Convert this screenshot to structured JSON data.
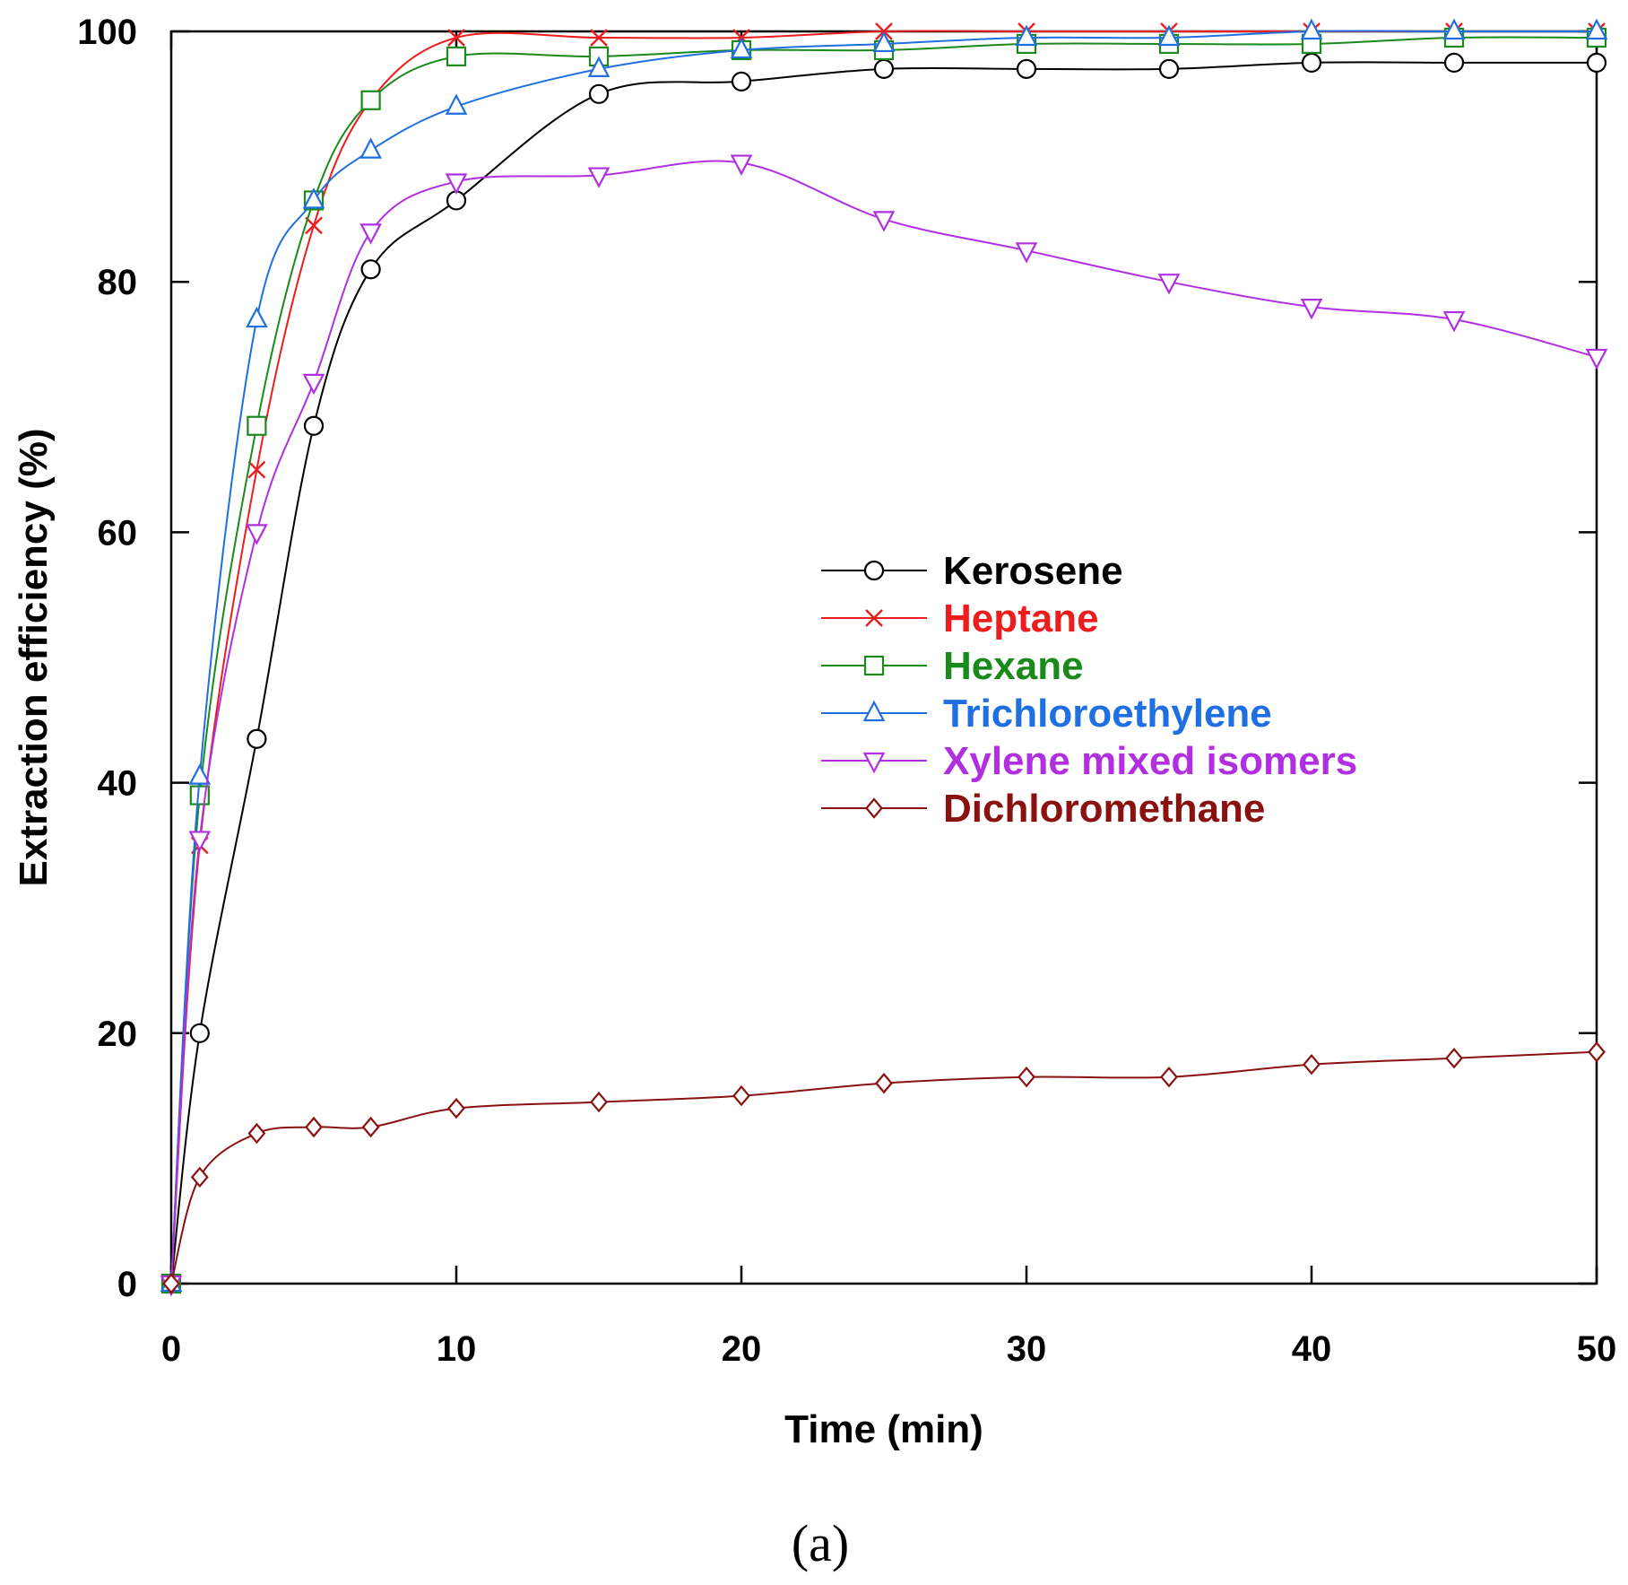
{
  "chart_data": {
    "type": "line",
    "title": "",
    "xlabel": "Time (min)",
    "ylabel": "Extraction efficiency (%)",
    "xlim": [
      0,
      50
    ],
    "ylim": [
      0,
      100
    ],
    "xticks": [
      0,
      10,
      20,
      30,
      40,
      50
    ],
    "yticks": [
      0,
      20,
      40,
      60,
      80,
      100
    ],
    "grid": false,
    "legend_position": "center-right",
    "caption": "(a)",
    "x": [
      0,
      1,
      3,
      5,
      7,
      10,
      15,
      20,
      25,
      30,
      35,
      40,
      45,
      50
    ],
    "series": [
      {
        "name": "Kerosene",
        "color": "#000000",
        "marker": "circle",
        "values": [
          0,
          20,
          43.5,
          68.5,
          81,
          86.5,
          95,
          96,
          97,
          97,
          97,
          97.5,
          97.5,
          97.5
        ]
      },
      {
        "name": "Heptane",
        "color": "#ee1c1c",
        "marker": "x",
        "values": [
          0,
          35,
          65,
          84.5,
          94.5,
          99.5,
          99.5,
          99.5,
          100,
          100,
          100,
          100,
          100,
          100
        ]
      },
      {
        "name": "Hexane",
        "color": "#1a8a1a",
        "marker": "square",
        "values": [
          0,
          39,
          68.5,
          86.5,
          94.5,
          98,
          98,
          98.5,
          98.5,
          99,
          99,
          99,
          99.5,
          99.5
        ]
      },
      {
        "name": "Trichloroethylene",
        "color": "#1f6fe0",
        "marker": "triangle-up",
        "values": [
          0,
          40.5,
          77,
          86.5,
          90.5,
          94,
          97,
          98.5,
          99,
          99.5,
          99.5,
          100,
          100,
          100
        ]
      },
      {
        "name": "Xylene mixed isomers",
        "color": "#b030e0",
        "marker": "triangle-down",
        "values": [
          0,
          35.5,
          60,
          72,
          84,
          88,
          88.5,
          89.5,
          85,
          82.5,
          80,
          78,
          77,
          74
        ]
      },
      {
        "name": "Dichloromethane",
        "color": "#8b1010",
        "marker": "diamond",
        "values": [
          0,
          8.5,
          12,
          12.5,
          12.5,
          14,
          14.5,
          15,
          16,
          16.5,
          16.5,
          17.5,
          18,
          18.5
        ]
      }
    ]
  }
}
